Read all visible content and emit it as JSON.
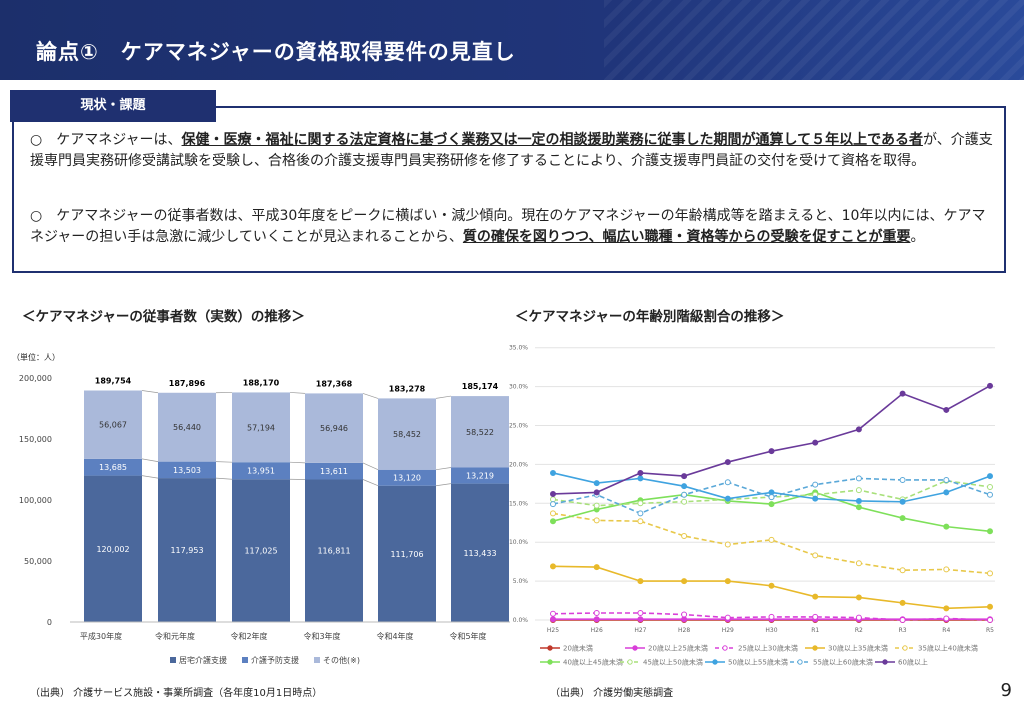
{
  "header": {
    "title": "論点①　ケアマネジャーの資格取得要件の見直し"
  },
  "section_tag": "現状・課題",
  "paragraphs": [
    {
      "bullet": "○",
      "pre": "　ケアマネジャーは、",
      "bold": "保健・医療・福祉に関する法定資格に基づく業務又は一定の相談援助業務に従事した期間が通算して５年以上である者",
      "post": "が、介護支援専門員実務研修受講試験を受験し、合格後の介護支援専門員実務研修を修了することにより、介護支援専門員証の交付を受けて資格を取得。"
    },
    {
      "bullet": "○",
      "pre": "　ケアマネジャーの従事者数は、平成30年度をピークに横ばい・減少傾向。現在のケアマネジャーの年齢構成等を踏まえると、10年以内には、ケアマネジャーの担い手は急激に減少していくことが見込まれることから、",
      "bold": "質の確保を図りつつ、幅広い職種・資格等からの受験を促すことが重要",
      "post": "。"
    }
  ],
  "chart_data": [
    {
      "type": "bar",
      "stacked": true,
      "title": "＜ケアマネジャーの従事者数（実数）の推移＞",
      "unit_label": "（単位：人）",
      "categories": [
        "平成30年度",
        "令和元年度",
        "令和2年度",
        "令和3年度",
        "令和4年度",
        "令和5年度"
      ],
      "ylim": [
        0,
        200000
      ],
      "yticks": [
        "0",
        "50,000",
        "100,000",
        "150,000",
        "200,000"
      ],
      "totals": [
        "189,754",
        "187,896",
        "188,170",
        "187,368",
        "183,278",
        "185,174"
      ],
      "series": [
        {
          "name": "居宅介護支援",
          "color": "#4b689c",
          "values": [
            120002,
            117953,
            117025,
            116811,
            111706,
            113433
          ],
          "labels": [
            "120,002",
            "117,953",
            "117,025",
            "116,811",
            "111,706",
            "113,433"
          ]
        },
        {
          "name": "介護予防支援",
          "color": "#5c80c0",
          "values": [
            13685,
            13503,
            13951,
            13611,
            13120,
            13219
          ],
          "labels": [
            "13,685",
            "13,503",
            "13,951",
            "13,611",
            "13,120",
            "13,219"
          ]
        },
        {
          "name": "その他(※)",
          "color": "#aab9da",
          "values": [
            56067,
            56440,
            57194,
            56946,
            58452,
            58522
          ],
          "labels": [
            "56,067",
            "56,440",
            "57,194",
            "56,946",
            "58,452",
            "58,522"
          ]
        }
      ],
      "legend": "bottom",
      "source": "（出典） 介護サービス施設・事業所調査（各年度10月1日時点）"
    },
    {
      "type": "line",
      "title": "＜ケアマネジャーの年齢別階級割合の推移＞",
      "x": [
        "H25",
        "H26",
        "H27",
        "H28",
        "H29",
        "H30",
        "R1",
        "R2",
        "R3",
        "R4",
        "R5"
      ],
      "ylim": [
        0,
        35
      ],
      "yticks": [
        "0.0%",
        "5.0%",
        "10.0%",
        "15.0%",
        "20.0%",
        "25.0%",
        "30.0%",
        "35.0%"
      ],
      "grid": true,
      "legend": "bottom",
      "series": [
        {
          "name": "20歳未満",
          "color": "#c0392b",
          "dash": false,
          "values": [
            0,
            0,
            0,
            0,
            0,
            0,
            0,
            0,
            0,
            0,
            0
          ]
        },
        {
          "name": "20歳以上25歳未満",
          "color": "#d93fd9",
          "dash": false,
          "values": [
            0.1,
            0.1,
            0.1,
            0.1,
            0.1,
            0.1,
            0.1,
            0.1,
            0.1,
            0.1,
            0.1
          ]
        },
        {
          "name": "25歳以上30歳未満",
          "color": "#d93fd9",
          "dash": true,
          "values": [
            0.8,
            0.9,
            0.9,
            0.7,
            0.3,
            0.4,
            0.4,
            0.3,
            0.0,
            0.2,
            0.0
          ]
        },
        {
          "name": "30歳以上35歳未満",
          "color": "#e8b92a",
          "dash": false,
          "values": [
            6.9,
            6.8,
            5.0,
            5.0,
            5.0,
            4.4,
            3.0,
            2.9,
            2.2,
            1.5,
            1.7
          ]
        },
        {
          "name": "35歳以上40歳未満",
          "color": "#e8c84a",
          "dash": true,
          "values": [
            13.7,
            12.8,
            12.7,
            10.8,
            9.7,
            10.3,
            8.3,
            7.3,
            6.4,
            6.5,
            6.0
          ]
        },
        {
          "name": "40歳以上45歳未満",
          "color": "#7ee05a",
          "dash": false,
          "values": [
            12.7,
            14.2,
            15.4,
            16.1,
            15.3,
            14.9,
            16.4,
            14.5,
            13.1,
            12.0,
            11.4
          ]
        },
        {
          "name": "45歳以上50歳未満",
          "color": "#a8e07a",
          "dash": true,
          "values": [
            15.5,
            14.7,
            15.0,
            15.2,
            15.5,
            15.8,
            16.1,
            16.7,
            15.5,
            17.9,
            17.1
          ]
        },
        {
          "name": "50歳以上55歳未満",
          "color": "#3fa3e0",
          "dash": false,
          "values": [
            18.9,
            17.6,
            18.2,
            17.2,
            15.6,
            16.4,
            15.6,
            15.3,
            15.2,
            16.4,
            18.5
          ]
        },
        {
          "name": "55歳以上60歳未満",
          "color": "#5aa8d8",
          "dash": true,
          "values": [
            14.9,
            16.1,
            13.7,
            16.1,
            17.7,
            15.8,
            17.4,
            18.2,
            18.0,
            18.0,
            16.1
          ]
        },
        {
          "name": "60歳以上",
          "color": "#6a3a9a",
          "dash": false,
          "values": [
            16.2,
            16.4,
            18.9,
            18.5,
            20.3,
            21.7,
            22.8,
            24.5,
            29.1,
            27.0,
            30.1
          ]
        }
      ],
      "source": "（出典） 介護労働実態調査"
    }
  ],
  "page_number": "9"
}
